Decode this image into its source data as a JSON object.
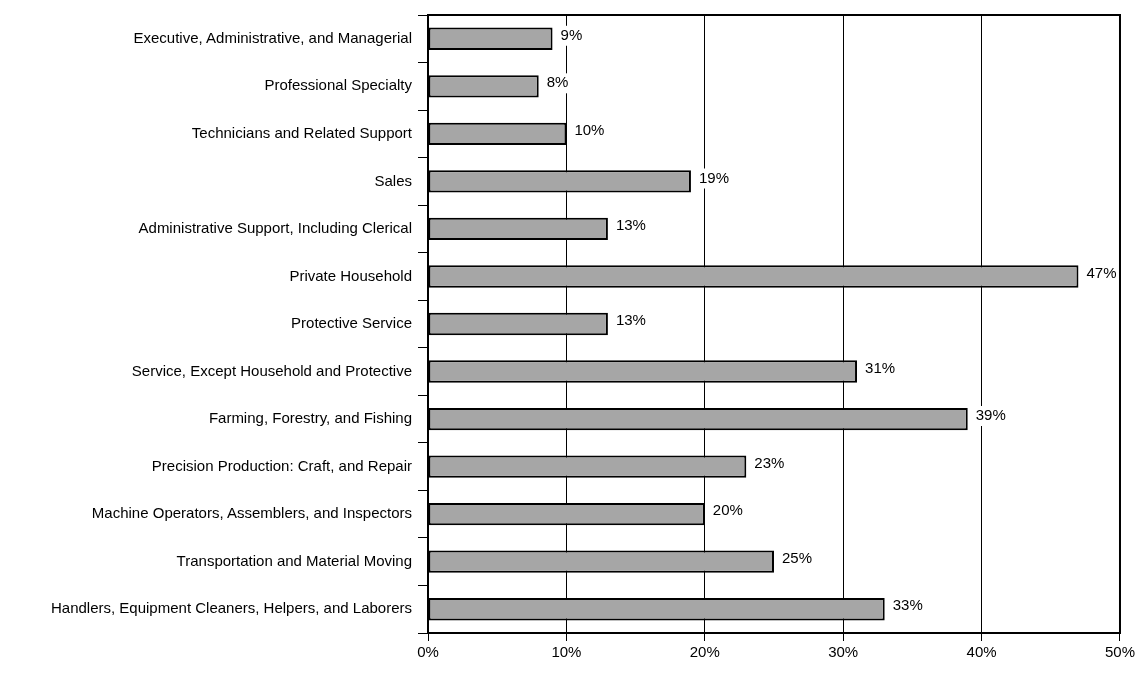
{
  "chart_data": {
    "type": "bar",
    "orientation": "horizontal",
    "categories": [
      "Executive, Administrative, and Managerial",
      "Professional Specialty",
      "Technicians and Related Support",
      "Sales",
      "Administrative Support, Including Clerical",
      "Private Household",
      "Protective Service",
      "Service, Except Household and Protective",
      "Farming, Forestry, and Fishing",
      "Precision Production: Craft, and Repair",
      "Machine Operators, Assemblers, and Inspectors",
      "Transportation and Material Moving",
      "Handlers, Equipment Cleaners, Helpers, and Laborers"
    ],
    "values": [
      9,
      8,
      10,
      19,
      13,
      47,
      13,
      31,
      39,
      23,
      20,
      25,
      33
    ],
    "value_labels": [
      "9%",
      "8%",
      "10%",
      "19%",
      "13%",
      "47%",
      "13%",
      "31%",
      "39%",
      "23%",
      "20%",
      "25%",
      "33%"
    ],
    "color": "#a6a6a6",
    "xlim": [
      0,
      50
    ],
    "xticks": [
      {
        "value": 0,
        "label": "0%"
      },
      {
        "value": 10,
        "label": "10%"
      },
      {
        "value": 20,
        "label": "20%"
      },
      {
        "value": 30,
        "label": "30%"
      },
      {
        "value": 40,
        "label": "40%"
      },
      {
        "value": 50,
        "label": "50%"
      }
    ],
    "grid": "x"
  }
}
